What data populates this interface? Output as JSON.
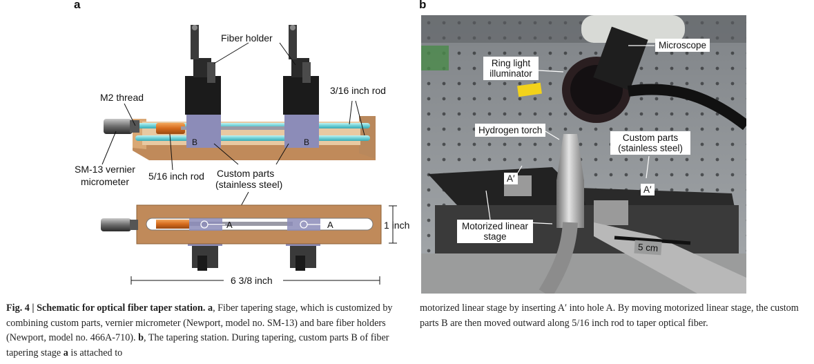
{
  "panels": {
    "a": "a",
    "b": "b"
  },
  "schematic": {
    "fiber_holder": "Fiber holder",
    "m2_thread": "M2 thread",
    "rod_316": "3/16 inch rod",
    "micrometer_line1": "SM-13 vernier",
    "micrometer_line2": "micrometer",
    "rod_516": "5/16 inch rod",
    "custom_line1": "Custom parts",
    "custom_line2": "(stainless steel)",
    "b_left": "B",
    "b_right": "B",
    "a_left": "A",
    "a_right": "A",
    "one_inch": "1 inch",
    "width": "6 3/8 inch"
  },
  "photo": {
    "microscope": "Microscope",
    "ring_light_line1": "Ring light",
    "ring_light_line2": "illuminator",
    "hydrogen_torch": "Hydrogen torch",
    "custom_line1": "Custom parts",
    "custom_line2": "(stainless steel)",
    "a_prime_left": "A′",
    "a_prime_right": "A′",
    "stage_line1": "Motorized linear",
    "stage_line2": "stage",
    "scale": "5 cm"
  },
  "caption": {
    "fig": "Fig. 4 | Schematic for optical fiber taper station.",
    "a_ref": "a",
    "text1": ", Fiber tapering stage, which is customized by combining custom parts, vernier micrometer (Newport, model no. SM-13) and bare fiber holders (Newport, model no. 466A-710).",
    "b_ref": "b",
    "text2": ", The tapering station. During tapering, custom parts B of fiber tapering stage",
    "a_ref2": "a",
    "text3": "is attached to",
    "right": "motorized linear stage by inserting A′ into hole A. By moving motorized linear stage, the custom parts B are then moved outward along 5/16 inch rod to taper optical fiber."
  }
}
